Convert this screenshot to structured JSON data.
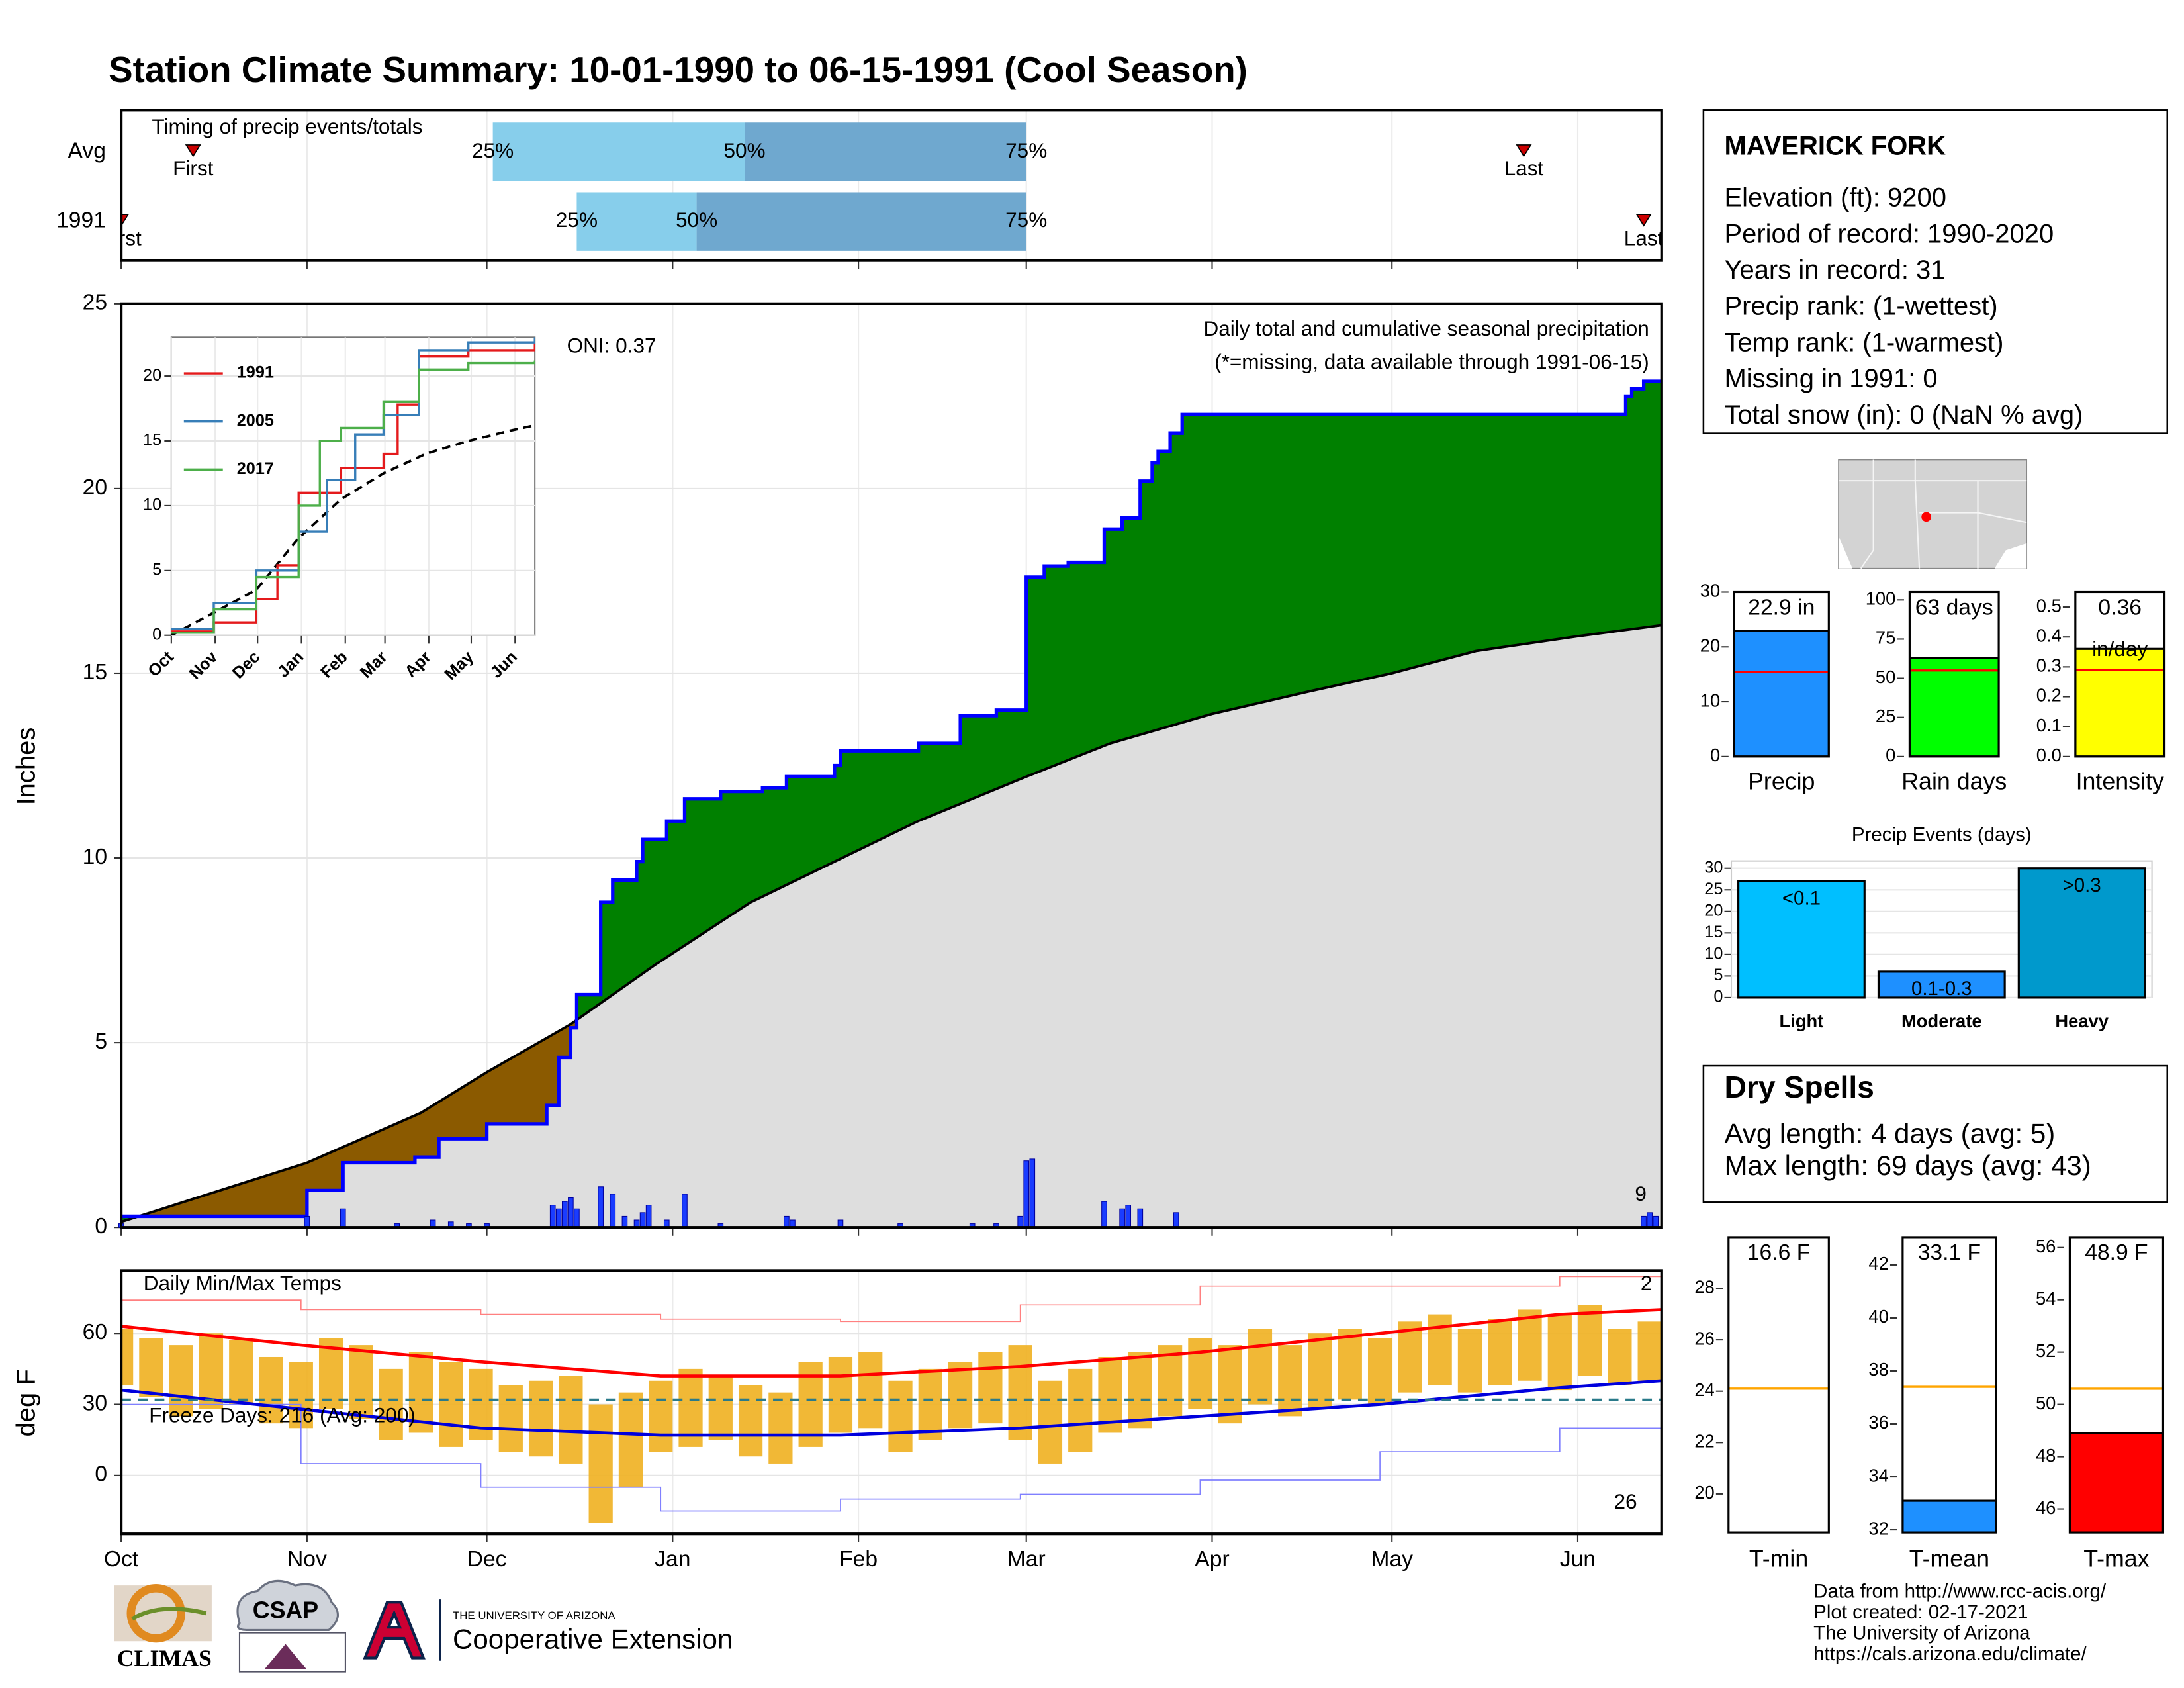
{
  "title": "Station Climate Summary: 10-01-1990 to 06-15-1991 (Cool Season)",
  "station": {
    "name": "MAVERICK FORK",
    "lines": [
      "Elevation (ft): 9200",
      "Period of record: 1990-2020",
      "Years in record: 31",
      "Precip rank:  (1-wettest)",
      "Temp rank:  (1-warmest)",
      "Missing in 1991: 0",
      "Total snow (in): 0 (NaN % avg)"
    ]
  },
  "dry_spells": {
    "title": "Dry Spells",
    "lines": [
      "Avg length: 4 days (avg: 5)",
      "Max length: 69 days (avg: 43)"
    ]
  },
  "footer": [
    "Data from http://www.rcc-acis.org/",
    "Plot created: 02-17-2021",
    "The University of Arizona",
    "https://cals.arizona.edu/climate/"
  ],
  "logos": {
    "climas": "CLIMAS",
    "csap": "CSAP",
    "university": "THE UNIVERSITY OF ARIZONA",
    "extension": "Cooperative Extension"
  },
  "chart_data": [
    {
      "type": "timing",
      "title": "Timing of precip events/totals",
      "rows": [
        {
          "name": "Avg",
          "first": 12,
          "p25": 62,
          "p50": 104,
          "p75": 151,
          "last": 234
        },
        {
          "name": "1991",
          "first": 0,
          "p25": 76,
          "p50": 96,
          "p75": 151,
          "last": 254
        }
      ],
      "labels": {
        "first": "First",
        "last": "Last",
        "p25": "25%",
        "p50": "50%",
        "p75": "75%"
      },
      "xlim": [
        0,
        257
      ],
      "xticks": [
        0,
        31,
        61,
        92,
        123,
        151,
        182,
        212,
        243
      ],
      "light_color": "#87ceeb",
      "dark_color": "#6fa8cf",
      "marker_color": "#cc0000"
    },
    {
      "type": "area",
      "title": "Daily total and cumulative seasonal precipitation",
      "subtitle": "(*=missing, data available through 1991-06-15)",
      "annotation": "ONI: 0.37",
      "count_label": "9",
      "ylabel": "Inches",
      "xlim": [
        0,
        257
      ],
      "xticks": [
        0,
        31,
        61,
        92,
        123,
        151,
        182,
        212,
        243
      ],
      "ylim": [
        0,
        25
      ],
      "yticks": [
        0,
        5,
        10,
        15,
        20,
        25
      ],
      "grid": true,
      "above_color": "#008000",
      "below_color": "#8b5a00",
      "base_color": "#dedede",
      "observed": {
        "color": "#0000ff",
        "x": [
          0,
          31,
          37,
          49,
          53,
          61,
          71,
          73,
          75,
          76,
          80,
          82,
          86,
          87,
          91,
          94,
          100,
          107,
          111,
          119,
          120,
          133,
          140,
          146,
          151,
          154,
          158,
          164,
          167,
          170,
          172,
          173,
          175,
          177,
          251,
          252,
          254,
          257
        ],
        "values": [
          0.3,
          1.0,
          1.75,
          1.9,
          2.4,
          2.8,
          3.3,
          4.6,
          5.4,
          6.3,
          8.8,
          9.4,
          9.9,
          10.5,
          11.0,
          11.6,
          11.8,
          11.9,
          12.2,
          12.5,
          12.9,
          13.1,
          13.85,
          14.0,
          17.6,
          17.9,
          18.0,
          18.9,
          19.2,
          20.2,
          20.7,
          21.0,
          21.5,
          22.0,
          22.5,
          22.7,
          22.9,
          22.9
        ]
      },
      "average": {
        "color": "#000000",
        "x": [
          0,
          31,
          50,
          61,
          75,
          89,
          105,
          119,
          133,
          151,
          165,
          182,
          198,
          212,
          226,
          243,
          257
        ],
        "values": [
          0.15,
          1.75,
          3.1,
          4.2,
          5.5,
          7.1,
          8.8,
          9.9,
          11.0,
          12.2,
          13.1,
          13.9,
          14.5,
          15.0,
          15.6,
          16.0,
          16.3
        ]
      },
      "daily": {
        "color": "#1a3cff",
        "x": [
          0,
          31,
          37,
          46,
          52,
          55,
          58,
          61,
          72,
          73,
          74,
          75,
          76,
          80,
          82,
          84,
          86,
          87,
          88,
          91,
          94,
          100,
          111,
          112,
          120,
          130,
          142,
          146,
          150,
          151,
          152,
          164,
          167,
          168,
          170,
          176,
          254,
          255,
          256
        ],
        "values": [
          0.1,
          0.3,
          0.5,
          0.1,
          0.2,
          0.15,
          0.1,
          0.1,
          0.6,
          0.5,
          0.7,
          0.8,
          0.5,
          1.1,
          0.9,
          0.3,
          0.2,
          0.4,
          0.6,
          0.2,
          0.9,
          0.1,
          0.3,
          0.2,
          0.2,
          0.1,
          0.1,
          0.1,
          0.3,
          1.8,
          1.85,
          0.7,
          0.5,
          0.6,
          0.5,
          0.4,
          0.3,
          0.4,
          0.3
        ]
      }
    },
    {
      "type": "line",
      "categories": [
        "Oct",
        "Nov",
        "Dec",
        "Jan",
        "Feb",
        "Mar",
        "Apr",
        "May",
        "Jun"
      ],
      "xlim": [
        0,
        257
      ],
      "xticks": [
        0,
        31,
        61,
        92,
        123,
        151,
        182,
        212,
        243
      ],
      "ylim": [
        0,
        23
      ],
      "yticks": [
        0,
        5,
        10,
        15,
        20
      ],
      "grid": true,
      "series": [
        {
          "name": "1991",
          "color": "#e41a1c",
          "x": [
            0,
            30,
            60,
            75,
            90,
            120,
            150,
            160,
            175,
            210,
            257
          ],
          "values": [
            0.3,
            1.0,
            2.8,
            5.4,
            11.0,
            12.9,
            14.0,
            17.8,
            21.5,
            22.0,
            22.9
          ]
        },
        {
          "name": "2005",
          "color": "#377eb8",
          "x": [
            0,
            30,
            60,
            90,
            110,
            130,
            150,
            175,
            210,
            257
          ],
          "values": [
            0.5,
            2.5,
            5.0,
            8.0,
            12.0,
            15.5,
            17.0,
            22.0,
            22.6,
            23.0
          ]
        },
        {
          "name": "2017",
          "color": "#4daf4a",
          "x": [
            0,
            30,
            60,
            90,
            105,
            120,
            150,
            175,
            210,
            257
          ],
          "values": [
            0.2,
            2.0,
            4.5,
            10.0,
            15.0,
            16.0,
            18.0,
            20.5,
            21.0,
            21.2
          ]
        }
      ],
      "average": {
        "color": "#000000",
        "x": [
          0,
          60,
          90,
          120,
          150,
          180,
          210,
          240,
          257
        ],
        "values": [
          0,
          3.5,
          7.5,
          10.5,
          12.5,
          14.0,
          15.0,
          15.8,
          16.2
        ]
      }
    },
    {
      "type": "temperature",
      "title": "Daily Min/Max Temps",
      "ylabel": "deg F",
      "annotation": "Freeze Days: 216 (Avg: 200)",
      "max_count_label": "2",
      "min_count_label": "26",
      "categories": [
        "Oct",
        "Nov",
        "Dec",
        "Jan",
        "Feb",
        "Mar",
        "Apr",
        "May",
        "Jun"
      ],
      "xlim": [
        0,
        257
      ],
      "xticks": [
        0,
        31,
        61,
        92,
        123,
        151,
        182,
        212,
        243
      ],
      "ylim": [
        -24.7,
        86.5
      ],
      "yticks": [
        0,
        30,
        60
      ],
      "grid": true,
      "threshold": 32,
      "threshold_color": "#2a7a8a",
      "daily": {
        "color": "#f0b020",
        "x": [
          0,
          5,
          10,
          15,
          20,
          25,
          30,
          35,
          40,
          45,
          50,
          55,
          60,
          65,
          70,
          75,
          80,
          85,
          90,
          95,
          100,
          105,
          110,
          115,
          120,
          125,
          130,
          135,
          140,
          145,
          150,
          155,
          160,
          165,
          170,
          175,
          180,
          185,
          190,
          195,
          200,
          205,
          210,
          215,
          220,
          225,
          230,
          235,
          240,
          245,
          250,
          255
        ],
        "min": [
          38,
          33,
          25,
          28,
          30,
          22,
          20,
          28,
          24,
          15,
          18,
          12,
          15,
          10,
          8,
          5,
          -20,
          -5,
          10,
          12,
          15,
          8,
          5,
          12,
          18,
          20,
          10,
          15,
          20,
          22,
          15,
          5,
          10,
          18,
          20,
          25,
          28,
          22,
          30,
          25,
          28,
          32,
          30,
          35,
          38,
          35,
          38,
          40,
          36,
          42,
          38,
          40
        ],
        "max": [
          62,
          58,
          55,
          60,
          57,
          50,
          48,
          58,
          55,
          45,
          52,
          48,
          45,
          38,
          40,
          42,
          30,
          35,
          40,
          45,
          42,
          38,
          35,
          48,
          50,
          52,
          40,
          45,
          48,
          52,
          55,
          40,
          45,
          50,
          52,
          55,
          58,
          55,
          62,
          55,
          60,
          62,
          58,
          65,
          68,
          62,
          66,
          70,
          68,
          72,
          62,
          65
        ]
      },
      "avg_max": {
        "color": "#ff0000",
        "x": [
          0,
          30,
          60,
          90,
          120,
          150,
          180,
          210,
          240,
          257
        ],
        "values": [
          63,
          55,
          48,
          42,
          42,
          46,
          52,
          60,
          68,
          70
        ]
      },
      "avg_min": {
        "color": "#0000dd",
        "x": [
          0,
          30,
          60,
          90,
          120,
          150,
          180,
          210,
          240,
          257
        ],
        "values": [
          36,
          28,
          20,
          17,
          17,
          20,
          25,
          30,
          37,
          40
        ]
      },
      "record_max": {
        "color": "#ff8080",
        "x": [
          0,
          30,
          60,
          90,
          120,
          150,
          180,
          210,
          240,
          257
        ],
        "values": [
          74,
          70,
          68,
          66,
          65,
          72,
          80,
          80,
          84,
          86
        ]
      },
      "record_min": {
        "color": "#8080ff",
        "x": [
          0,
          30,
          60,
          90,
          120,
          150,
          180,
          210,
          240,
          257
        ],
        "values": [
          30,
          5,
          -5,
          -15,
          -10,
          -8,
          -2,
          10,
          20,
          28
        ]
      }
    },
    {
      "type": "bar",
      "categories": [
        "Precip"
      ],
      "values": [
        22.9
      ],
      "value_labels": [
        "22.9 in"
      ],
      "average": 15.4,
      "ylim": [
        0,
        30
      ],
      "yticks": [
        0,
        10,
        20,
        30
      ],
      "color": "#1e90ff",
      "avg_color": "#ff0000"
    },
    {
      "type": "bar",
      "categories": [
        "Rain days"
      ],
      "values": [
        63
      ],
      "value_labels": [
        "63 days"
      ],
      "average": 55,
      "ylim": [
        0,
        105
      ],
      "yticks": [
        0,
        25,
        50,
        75,
        100
      ],
      "color": "#00ff00",
      "avg_color": "#ff0000"
    },
    {
      "type": "bar",
      "categories": [
        "Intensity"
      ],
      "values": [
        0.36
      ],
      "value_labels": [
        "0.36"
      ],
      "unit_label": "in/day",
      "average": 0.29,
      "ylim": [
        0,
        0.55
      ],
      "yticks": [
        {
          "value": 0,
          "label": "0.0"
        },
        0.1,
        0.2,
        0.3,
        0.4,
        0.5
      ],
      "color": "#ffff00",
      "avg_color": "#ff0000"
    },
    {
      "type": "events",
      "title": "Precip Events (days)",
      "categories": [
        "Light",
        "Moderate",
        "Heavy"
      ],
      "values": [
        27,
        6,
        30
      ],
      "bar_labels": [
        "<0.1",
        "0.1-0.3",
        ">0.3"
      ],
      "colors": [
        "#00bfff",
        "#1e90ff",
        "#0099cc"
      ],
      "ylim": [
        0,
        31.7
      ],
      "yticks": [
        0,
        5,
        10,
        15,
        20,
        25,
        30
      ],
      "grid": true
    },
    {
      "type": "bar",
      "categories": [
        "T-min"
      ],
      "values": [
        16.6
      ],
      "value_labels": [
        "16.6 F"
      ],
      "average": 24.1,
      "ylim": [
        18.5,
        30.0
      ],
      "yticks": [
        20,
        22,
        24,
        26,
        28
      ],
      "color": "#ffffff",
      "avg_color": "#ffa500"
    },
    {
      "type": "bar",
      "categories": [
        "T-mean"
      ],
      "values": [
        33.1
      ],
      "value_labels": [
        "33.1 F"
      ],
      "average": 37.4,
      "ylim": [
        31.9,
        43.05
      ],
      "yticks": [
        32,
        34,
        36,
        38,
        40,
        42
      ],
      "color": "#1e90ff",
      "avg_color": "#ffa500"
    },
    {
      "type": "bar",
      "categories": [
        "T-max"
      ],
      "values": [
        48.9
      ],
      "value_labels": [
        "48.9 F"
      ],
      "average": 50.6,
      "ylim": [
        45.1,
        56.4
      ],
      "yticks": [
        46,
        48,
        50,
        52,
        54,
        56
      ],
      "color": "#ff0000",
      "avg_color": "#ffa500"
    }
  ]
}
